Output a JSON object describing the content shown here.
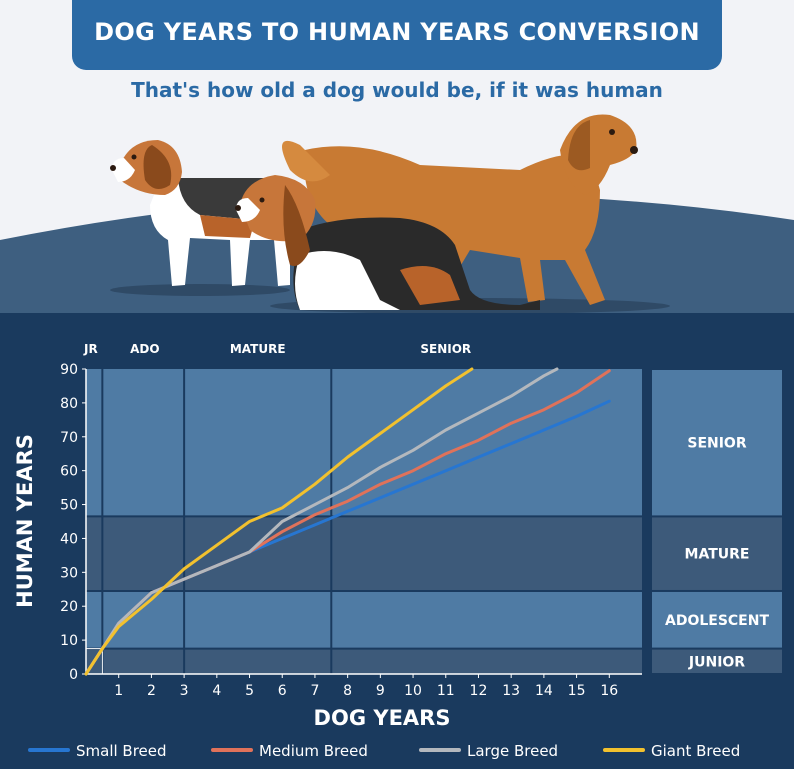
{
  "header": {
    "title": "DOG YEARS TO HUMAN YEARS CONVERSION",
    "subtitle": "That's how old a dog would be, if it was human"
  },
  "colors": {
    "title_bg": "#2b6aa5",
    "chart_bg": "#1a3a5e",
    "band_light": "#4f7ba4",
    "band_dark": "#3d5a7a",
    "small": "#2776d1",
    "medium": "#e0725a",
    "large": "#b4b8bd",
    "giant": "#f2c12e"
  },
  "chart_data": {
    "type": "line",
    "xlabel": "DOG YEARS",
    "ylabel": "HUMAN YEARS",
    "xlim": [
      0,
      17
    ],
    "ylim": [
      0,
      90
    ],
    "xticks": [
      "1",
      "2",
      "3",
      "4",
      "5",
      "6",
      "7",
      "8",
      "9",
      "10",
      "11",
      "12",
      "13",
      "14",
      "15",
      "16"
    ],
    "yticks": [
      "0",
      "10",
      "20",
      "30",
      "40",
      "50",
      "60",
      "70",
      "80",
      "90"
    ],
    "grid": false,
    "legend": "bottom",
    "stage_labels": [
      {
        "label": "JR",
        "x": 0.15
      },
      {
        "label": "ADO",
        "x": 1.8
      },
      {
        "label": "MATURE",
        "x": 5.25
      },
      {
        "label": "SENIOR",
        "x": 11
      }
    ],
    "stage_boundaries_x": [
      0.5,
      3,
      7.5
    ],
    "human_bands": [
      {
        "label": "JUNIOR",
        "from": 0,
        "to": 7.5
      },
      {
        "label": "ADOLESCENT",
        "from": 7.5,
        "to": 24.5
      },
      {
        "label": "MATURE",
        "from": 24.5,
        "to": 46.5
      },
      {
        "label": "SENIOR",
        "from": 46.5,
        "to": 90
      }
    ],
    "series": [
      {
        "name": "Small Breed",
        "color": "#2776d1",
        "points": [
          [
            0,
            0
          ],
          [
            0.5,
            7.5
          ],
          [
            1,
            15
          ],
          [
            2,
            24
          ],
          [
            3,
            28
          ],
          [
            4,
            32
          ],
          [
            5,
            36
          ],
          [
            6,
            40
          ],
          [
            7,
            44
          ],
          [
            8,
            48
          ],
          [
            9,
            52
          ],
          [
            10,
            56
          ],
          [
            11,
            60
          ],
          [
            12,
            64
          ],
          [
            13,
            68
          ],
          [
            14,
            72
          ],
          [
            15,
            76
          ],
          [
            16,
            80.5
          ]
        ]
      },
      {
        "name": "Medium Breed",
        "color": "#e0725a",
        "points": [
          [
            0,
            0
          ],
          [
            0.5,
            7.5
          ],
          [
            1,
            15
          ],
          [
            2,
            24
          ],
          [
            3,
            28
          ],
          [
            4,
            32
          ],
          [
            5,
            36
          ],
          [
            6,
            42
          ],
          [
            7,
            47
          ],
          [
            8,
            51
          ],
          [
            9,
            56
          ],
          [
            10,
            60
          ],
          [
            11,
            65
          ],
          [
            12,
            69
          ],
          [
            13,
            74
          ],
          [
            14,
            78
          ],
          [
            15,
            83
          ],
          [
            16,
            89.5
          ]
        ]
      },
      {
        "name": "Large Breed",
        "color": "#b4b8bd",
        "points": [
          [
            0,
            0
          ],
          [
            0.5,
            7.5
          ],
          [
            1,
            15
          ],
          [
            2,
            24
          ],
          [
            3,
            28
          ],
          [
            4,
            32
          ],
          [
            5,
            36
          ],
          [
            6,
            45
          ],
          [
            7,
            50
          ],
          [
            8,
            55
          ],
          [
            9,
            61
          ],
          [
            10,
            66
          ],
          [
            11,
            72
          ],
          [
            12,
            77
          ],
          [
            13,
            82
          ],
          [
            14,
            88
          ],
          [
            14.4,
            90
          ]
        ]
      },
      {
        "name": "Giant Breed",
        "color": "#f2c12e",
        "points": [
          [
            0,
            0
          ],
          [
            0.5,
            7.5
          ],
          [
            1,
            14
          ],
          [
            2,
            22
          ],
          [
            3,
            31
          ],
          [
            4,
            38
          ],
          [
            5,
            45
          ],
          [
            6,
            49
          ],
          [
            7,
            56
          ],
          [
            8,
            64
          ],
          [
            9,
            71
          ],
          [
            10,
            78
          ],
          [
            11,
            85
          ],
          [
            11.8,
            90
          ]
        ]
      }
    ]
  }
}
